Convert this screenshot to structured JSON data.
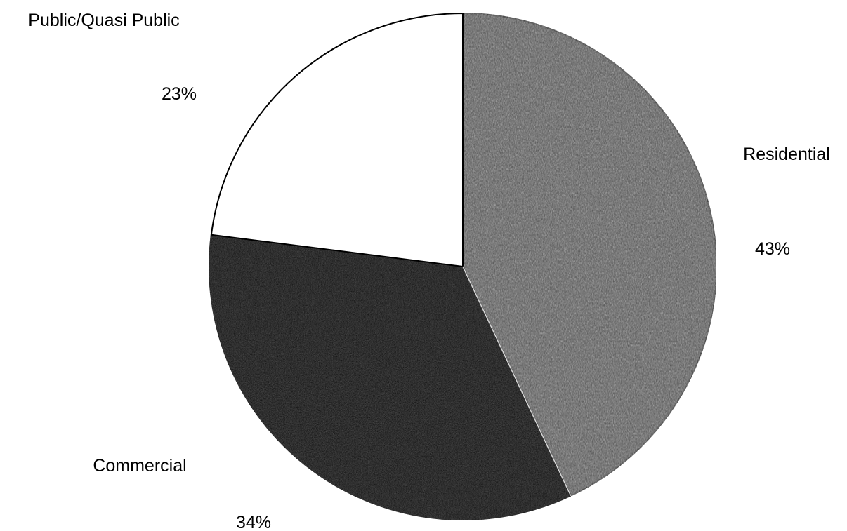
{
  "chart_data": {
    "type": "pie",
    "title": "",
    "slices": [
      {
        "label": "Residential",
        "value": 43,
        "display": "43%",
        "color": "#4a4a4a",
        "texture": "noisy-dark-gray"
      },
      {
        "label": "Commercial",
        "value": 34,
        "display": "34%",
        "color": "#000000",
        "texture": "near-black"
      },
      {
        "label": "Public/Quasi Public",
        "value": 23,
        "display": "23%",
        "color": "#ffffff",
        "texture": "none"
      }
    ],
    "start": "12 o'clock",
    "direction": "clockwise",
    "legend": "none",
    "labels": "outside"
  }
}
